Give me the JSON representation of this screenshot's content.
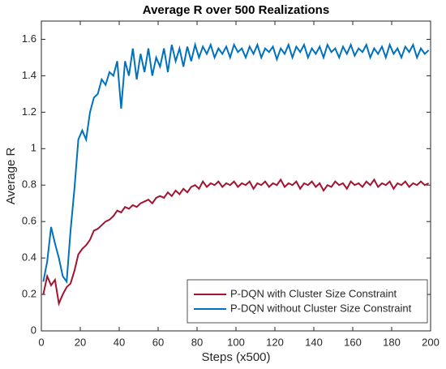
{
  "chart_data": {
    "type": "line",
    "title": "Average R over 500 Realizations",
    "x_label": "Steps (x500)",
    "y_label": "Average R",
    "x": [
      1,
      3,
      5,
      7,
      9,
      11,
      13,
      15,
      17,
      19,
      21,
      23,
      25,
      27,
      29,
      31,
      33,
      35,
      37,
      39,
      41,
      43,
      45,
      47,
      49,
      51,
      53,
      55,
      57,
      59,
      61,
      63,
      65,
      67,
      69,
      71,
      73,
      75,
      77,
      79,
      81,
      83,
      85,
      87,
      89,
      91,
      93,
      95,
      97,
      99,
      101,
      103,
      105,
      107,
      109,
      111,
      113,
      115,
      117,
      119,
      121,
      123,
      125,
      127,
      129,
      131,
      133,
      135,
      137,
      139,
      141,
      143,
      145,
      147,
      149,
      151,
      153,
      155,
      157,
      159,
      161,
      163,
      165,
      167,
      169,
      171,
      173,
      175,
      177,
      179,
      181,
      183,
      185,
      187,
      189,
      191,
      193,
      195,
      197,
      199
    ],
    "series": [
      {
        "name": "P-DQN with Cluster Size Constraint",
        "color": "#a2142f",
        "values": [
          0.2,
          0.3,
          0.25,
          0.28,
          0.15,
          0.2,
          0.24,
          0.26,
          0.33,
          0.42,
          0.45,
          0.47,
          0.5,
          0.55,
          0.56,
          0.58,
          0.6,
          0.61,
          0.63,
          0.66,
          0.65,
          0.68,
          0.67,
          0.69,
          0.68,
          0.7,
          0.71,
          0.72,
          0.7,
          0.73,
          0.74,
          0.73,
          0.76,
          0.74,
          0.77,
          0.75,
          0.78,
          0.76,
          0.79,
          0.8,
          0.78,
          0.82,
          0.79,
          0.81,
          0.8,
          0.82,
          0.79,
          0.81,
          0.8,
          0.82,
          0.79,
          0.81,
          0.8,
          0.82,
          0.78,
          0.81,
          0.8,
          0.82,
          0.79,
          0.81,
          0.8,
          0.83,
          0.79,
          0.81,
          0.8,
          0.82,
          0.78,
          0.81,
          0.8,
          0.82,
          0.79,
          0.81,
          0.77,
          0.8,
          0.79,
          0.82,
          0.8,
          0.81,
          0.78,
          0.82,
          0.8,
          0.81,
          0.79,
          0.82,
          0.8,
          0.83,
          0.79,
          0.81,
          0.8,
          0.82,
          0.78,
          0.81,
          0.8,
          0.82,
          0.79,
          0.81,
          0.8,
          0.82,
          0.8,
          0.81
        ]
      },
      {
        "name": "P-DQN without Cluster Size Constraint",
        "color": "#0072bd",
        "values": [
          0.27,
          0.38,
          0.57,
          0.48,
          0.4,
          0.3,
          0.27,
          0.55,
          0.78,
          1.05,
          1.1,
          1.05,
          1.2,
          1.28,
          1.3,
          1.38,
          1.35,
          1.42,
          1.4,
          1.48,
          1.22,
          1.48,
          1.4,
          1.55,
          1.38,
          1.52,
          1.42,
          1.55,
          1.4,
          1.5,
          1.45,
          1.55,
          1.42,
          1.57,
          1.48,
          1.55,
          1.45,
          1.56,
          1.48,
          1.57,
          1.5,
          1.56,
          1.52,
          1.57,
          1.5,
          1.55,
          1.52,
          1.56,
          1.5,
          1.57,
          1.53,
          1.55,
          1.5,
          1.56,
          1.52,
          1.57,
          1.5,
          1.55,
          1.53,
          1.56,
          1.49,
          1.55,
          1.52,
          1.57,
          1.5,
          1.56,
          1.53,
          1.57,
          1.5,
          1.55,
          1.52,
          1.56,
          1.5,
          1.57,
          1.53,
          1.55,
          1.5,
          1.56,
          1.52,
          1.57,
          1.51,
          1.55,
          1.53,
          1.57,
          1.5,
          1.55,
          1.52,
          1.56,
          1.5,
          1.57,
          1.52,
          1.55,
          1.5,
          1.56,
          1.53,
          1.57,
          1.5,
          1.55,
          1.52,
          1.54
        ]
      }
    ],
    "xlim": [
      0,
      200
    ],
    "xticks": [
      0,
      20,
      40,
      60,
      80,
      100,
      120,
      140,
      160,
      180,
      200
    ],
    "ylim": [
      0,
      1.7
    ],
    "yticks": [
      0,
      0.2,
      0.4,
      0.6,
      0.8,
      1,
      1.2,
      1.4,
      1.6
    ],
    "legend": "lower right"
  }
}
